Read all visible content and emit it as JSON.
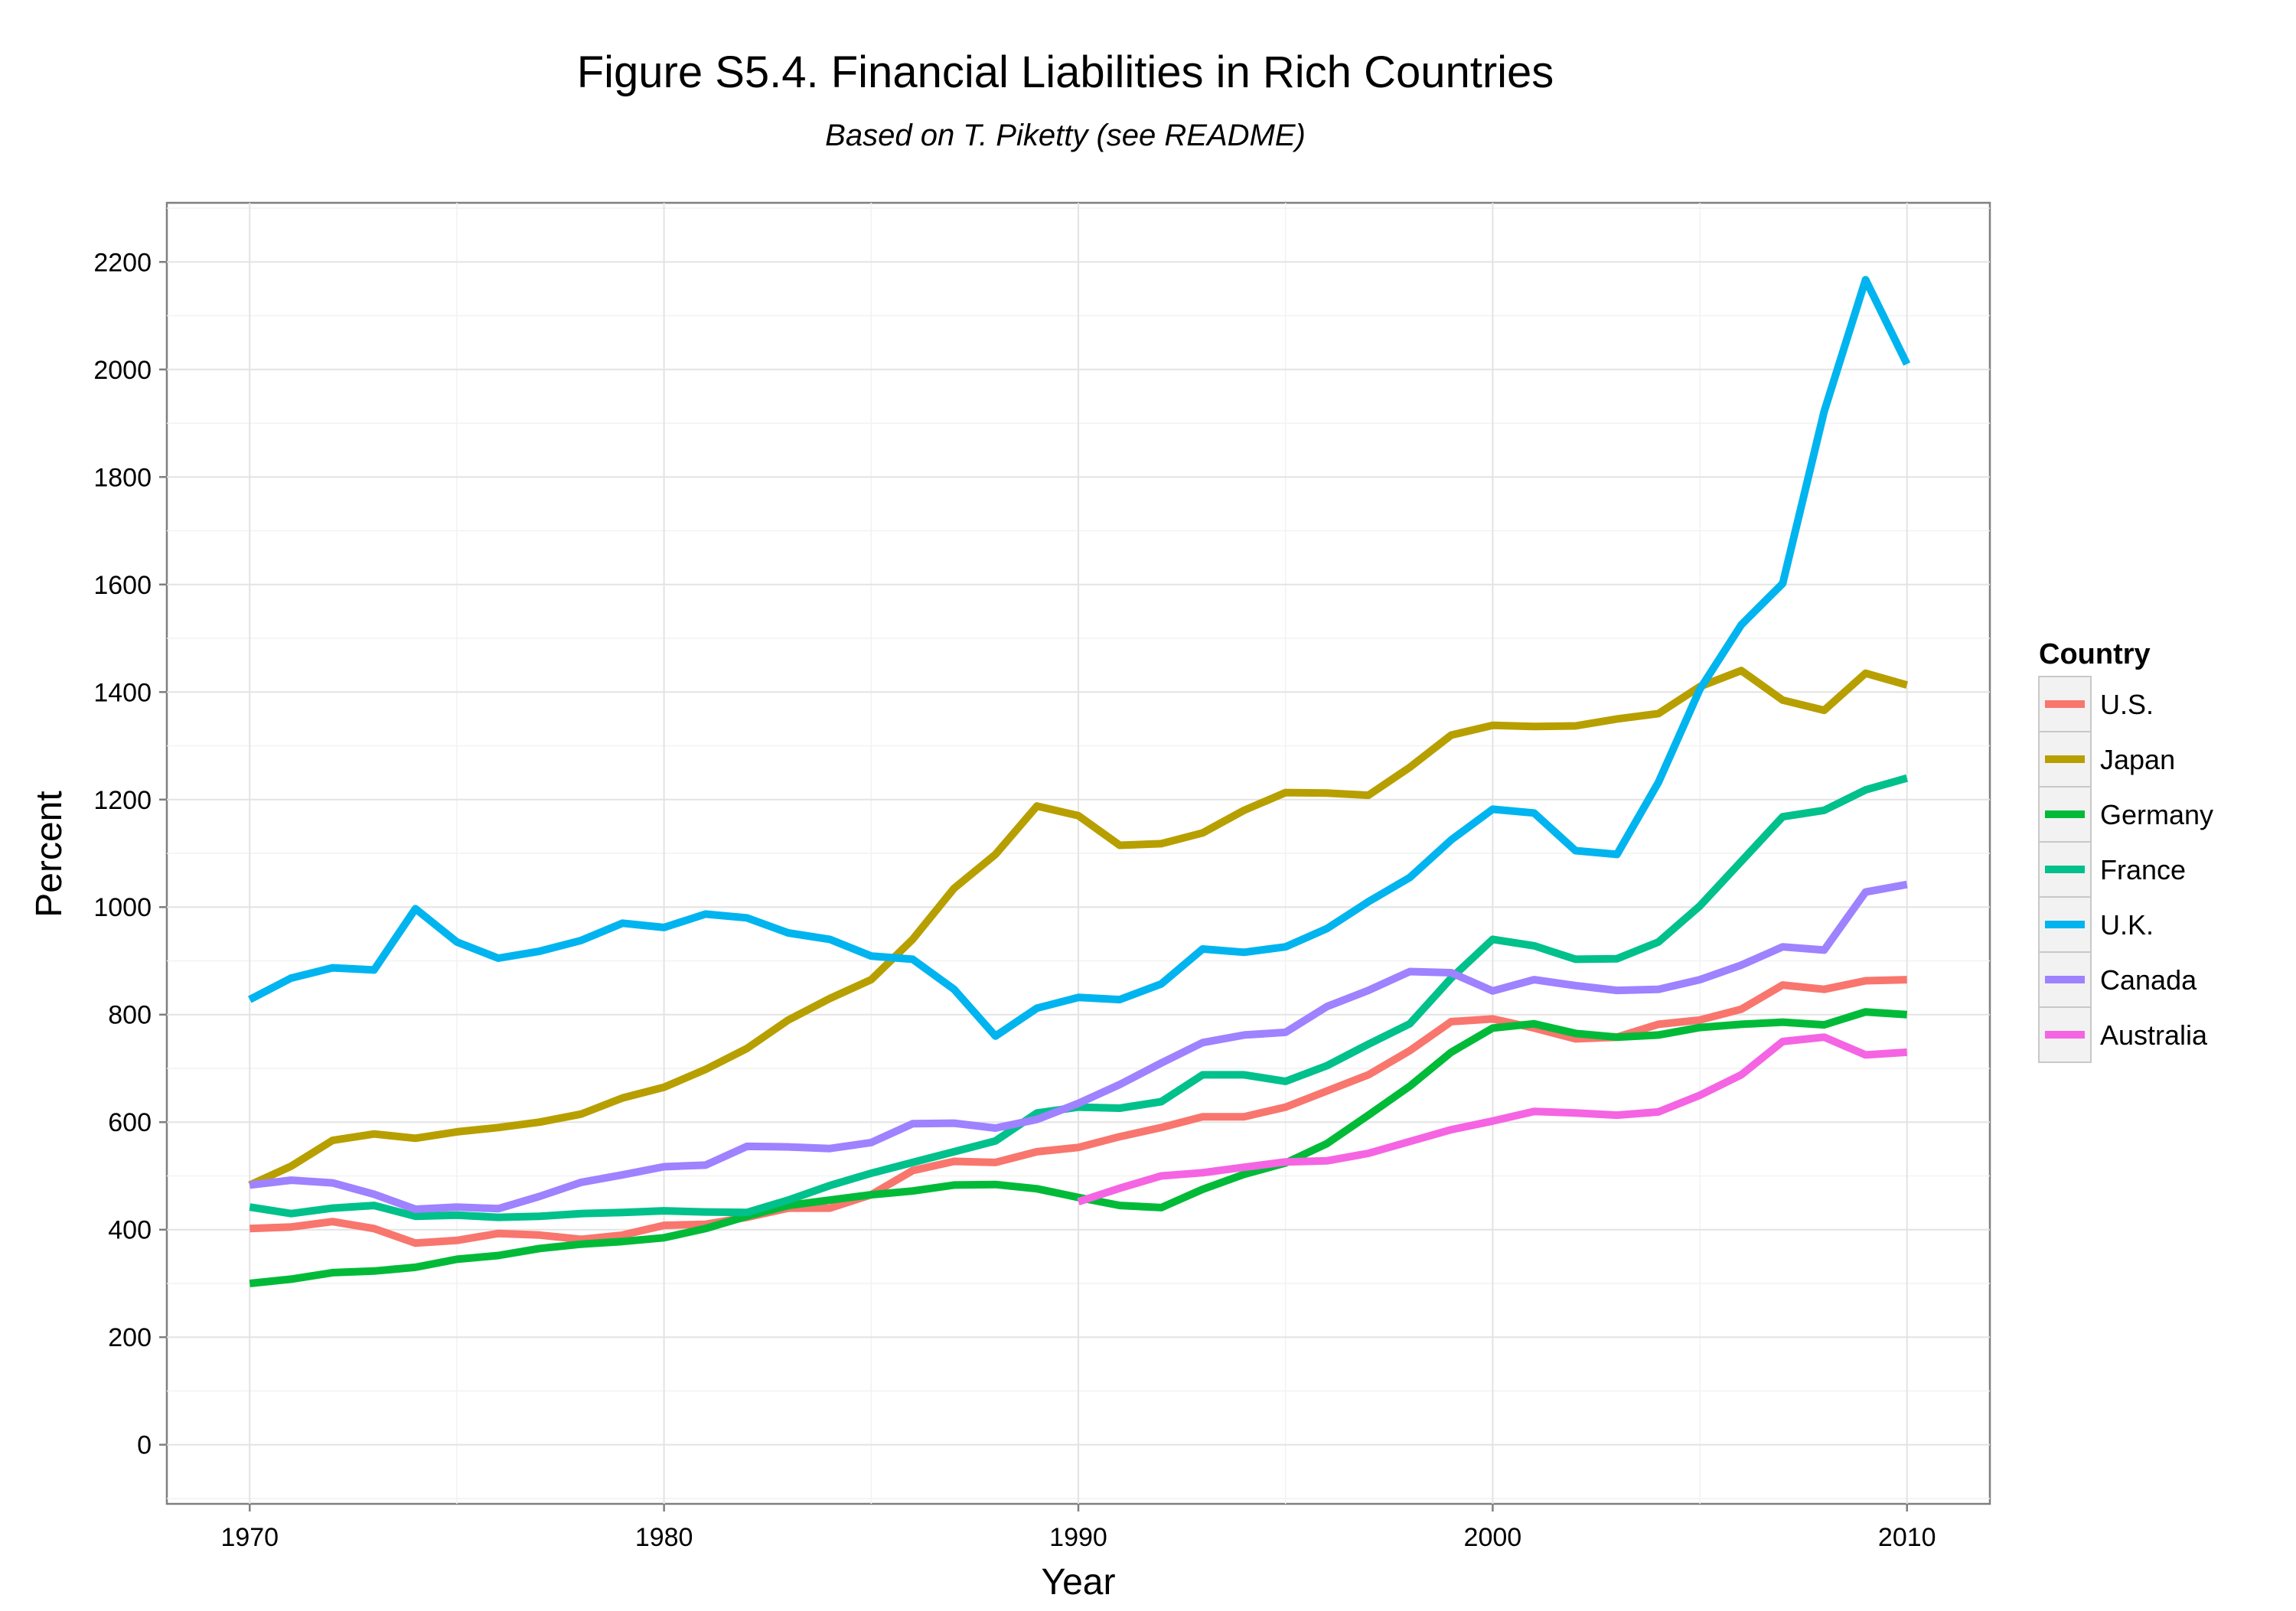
{
  "chart_data": {
    "type": "line",
    "title": "Figure S5.4. Financial Liabilities in Rich Countries",
    "subtitle": "Based on T. Piketty (see README)",
    "xlabel": "Year",
    "ylabel": "Percent",
    "xlim": [
      1968,
      2012
    ],
    "ylim": [
      -110,
      2310
    ],
    "x_ticks": [
      1970,
      1980,
      1990,
      2000,
      2010
    ],
    "x_tick_labels": [
      "1970",
      "1980",
      "1990",
      "2000",
      "2010"
    ],
    "y_ticks": [
      0,
      200,
      400,
      600,
      800,
      1000,
      1200,
      1400,
      1600,
      1800,
      2000,
      2200
    ],
    "y_tick_labels": [
      "0",
      "200",
      "400",
      "600",
      "800",
      "1000",
      "1200",
      "1400",
      "1600",
      "1800",
      "2000",
      "2200"
    ],
    "grid": true,
    "legend": {
      "title": "Country",
      "position": "right"
    },
    "series": [
      {
        "name": "U.S.",
        "color": "#F8766D",
        "x": [
          1970,
          1971,
          1972,
          1973,
          1974,
          1975,
          1976,
          1977,
          1978,
          1979,
          1980,
          1981,
          1982,
          1983,
          1984,
          1985,
          1986,
          1987,
          1988,
          1989,
          1990,
          1991,
          1992,
          1993,
          1994,
          1995,
          1996,
          1997,
          1998,
          1999,
          2000,
          2001,
          2002,
          2003,
          2004,
          2005,
          2006,
          2007,
          2008,
          2009,
          2010
        ],
        "values": [
          402,
          405,
          415,
          402,
          375,
          380,
          393,
          390,
          382,
          390,
          408,
          410,
          423,
          440,
          440,
          465,
          510,
          527,
          525,
          545,
          553,
          573,
          590,
          610,
          610,
          628,
          658,
          688,
          733,
          787,
          792,
          775,
          755,
          758,
          782,
          790,
          810,
          855,
          847,
          863,
          865
        ]
      },
      {
        "name": "Japan",
        "color": "#B79F00",
        "x": [
          1970,
          1971,
          1972,
          1973,
          1974,
          1975,
          1976,
          1977,
          1978,
          1979,
          1980,
          1981,
          1982,
          1983,
          1984,
          1985,
          1986,
          1987,
          1988,
          1989,
          1990,
          1991,
          1992,
          1993,
          1994,
          1995,
          1996,
          1997,
          1998,
          1999,
          2000,
          2001,
          2002,
          2003,
          2004,
          2005,
          2006,
          2007,
          2008,
          2009,
          2010
        ],
        "values": [
          483,
          518,
          566,
          578,
          570,
          582,
          590,
          600,
          615,
          645,
          665,
          698,
          737,
          790,
          830,
          865,
          940,
          1035,
          1098,
          1188,
          1170,
          1115,
          1118,
          1138,
          1180,
          1213,
          1212,
          1208,
          1260,
          1320,
          1338,
          1336,
          1337,
          1350,
          1360,
          1410,
          1440,
          1385,
          1366,
          1435,
          1413
        ]
      },
      {
        "name": "Germany",
        "color": "#00BA38",
        "x": [
          1970,
          1971,
          1972,
          1973,
          1974,
          1975,
          1976,
          1977,
          1978,
          1979,
          1980,
          1981,
          1982,
          1983,
          1984,
          1985,
          1986,
          1987,
          1988,
          1989,
          1990,
          1991,
          1992,
          1993,
          1994,
          1995,
          1996,
          1997,
          1998,
          1999,
          2000,
          2001,
          2002,
          2003,
          2004,
          2005,
          2006,
          2007,
          2008,
          2009,
          2010
        ],
        "values": [
          300,
          308,
          320,
          323,
          330,
          345,
          352,
          365,
          373,
          378,
          385,
          402,
          425,
          445,
          455,
          465,
          472,
          483,
          484,
          476,
          460,
          445,
          441,
          475,
          503,
          524,
          560,
          613,
          667,
          730,
          775,
          783,
          765,
          758,
          762,
          776,
          782,
          786,
          781,
          805,
          800
        ]
      },
      {
        "name": "France",
        "color": "#00C08B",
        "x": [
          1970,
          1971,
          1972,
          1973,
          1974,
          1975,
          1976,
          1977,
          1978,
          1979,
          1980,
          1981,
          1982,
          1983,
          1984,
          1985,
          1986,
          1987,
          1988,
          1989,
          1990,
          1991,
          1992,
          1993,
          1994,
          1995,
          1996,
          1997,
          1998,
          1999,
          2000,
          2001,
          2002,
          2003,
          2004,
          2005,
          2006,
          2007,
          2008,
          2009,
          2010
        ],
        "values": [
          442,
          430,
          440,
          445,
          425,
          427,
          423,
          425,
          430,
          432,
          435,
          433,
          432,
          455,
          482,
          505,
          525,
          545,
          565,
          617,
          628,
          626,
          638,
          688,
          688,
          676,
          705,
          745,
          783,
          868,
          940,
          928,
          903,
          904,
          935,
          1002,
          1085,
          1168,
          1180,
          1218,
          1240
        ]
      },
      {
        "name": "U.K.",
        "color": "#00B4EF",
        "x": [
          1970,
          1971,
          1972,
          1973,
          1974,
          1975,
          1976,
          1977,
          1978,
          1979,
          1980,
          1981,
          1982,
          1983,
          1984,
          1985,
          1986,
          1987,
          1988,
          1989,
          1990,
          1991,
          1992,
          1993,
          1994,
          1995,
          1996,
          1997,
          1998,
          1999,
          2000,
          2001,
          2002,
          2003,
          2004,
          2005,
          2006,
          2007,
          2008,
          2009,
          2010
        ],
        "values": [
          828,
          868,
          887,
          883,
          997,
          935,
          905,
          918,
          938,
          970,
          962,
          987,
          980,
          952,
          940,
          909,
          903,
          847,
          760,
          812,
          832,
          828,
          857,
          922,
          916,
          926,
          960,
          1010,
          1055,
          1125,
          1182,
          1175,
          1105,
          1098,
          1232,
          1405,
          1525,
          1602,
          1922,
          2167,
          2010
        ]
      },
      {
        "name": "Canada",
        "color": "#9E82FF",
        "x": [
          1970,
          1971,
          1972,
          1973,
          1974,
          1975,
          1976,
          1977,
          1978,
          1979,
          1980,
          1981,
          1982,
          1983,
          1984,
          1985,
          1986,
          1987,
          1988,
          1989,
          1990,
          1991,
          1992,
          1993,
          1994,
          1995,
          1996,
          1997,
          1998,
          1999,
          2000,
          2001,
          2002,
          2003,
          2004,
          2005,
          2006,
          2007,
          2008,
          2009,
          2010
        ],
        "values": [
          483,
          492,
          487,
          466,
          438,
          442,
          439,
          462,
          488,
          502,
          517,
          520,
          555,
          554,
          551,
          562,
          597,
          598,
          589,
          605,
          635,
          670,
          710,
          748,
          762,
          767,
          815,
          845,
          880,
          878,
          844,
          865,
          854,
          845,
          847,
          865,
          892,
          926,
          920,
          1028,
          1042
        ]
      },
      {
        "name": "Australia",
        "color": "#F564E3",
        "x": [
          1990,
          1991,
          1992,
          1993,
          1994,
          1995,
          1996,
          1997,
          1998,
          1999,
          2000,
          2001,
          2002,
          2003,
          2004,
          2005,
          2006,
          2007,
          2008,
          2009,
          2010
        ],
        "values": [
          452,
          477,
          500,
          506,
          516,
          526,
          528,
          542,
          564,
          586,
          602,
          620,
          617,
          613,
          619,
          650,
          688,
          750,
          758,
          725,
          730
        ]
      }
    ]
  }
}
